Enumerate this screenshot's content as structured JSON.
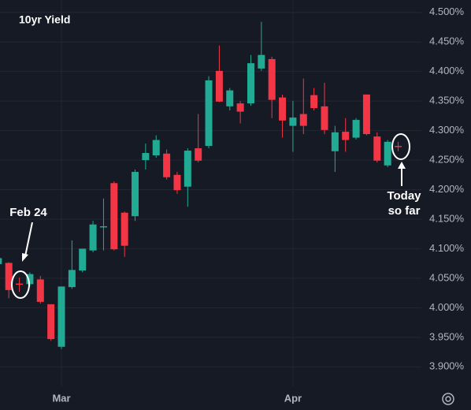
{
  "chart_data": {
    "type": "candlestick",
    "title": "10yr Yield",
    "annotations": [
      "Feb 24",
      "Today",
      "so far"
    ],
    "categories": [
      null,
      null,
      null,
      null,
      null,
      null,
      "Mar",
      null,
      null,
      null,
      null,
      null,
      null,
      null,
      null,
      null,
      null,
      null,
      null,
      null,
      null,
      null,
      null,
      null,
      null,
      null,
      null,
      null,
      "Apr",
      null,
      null,
      null,
      null,
      null,
      null,
      null,
      null,
      null,
      null
    ],
    "open": [
      4.074,
      4.076,
      4.041,
      4.04,
      4.048,
      4.006,
      3.934,
      4.035,
      4.063,
      4.097,
      4.137,
      4.211,
      4.161,
      4.155,
      4.25,
      4.258,
      4.261,
      4.225,
      4.205,
      4.27,
      4.274,
      4.401,
      4.341,
      4.346,
      4.346,
      4.405,
      4.421,
      4.356,
      4.308,
      4.328,
      4.36,
      4.341,
      4.265,
      4.298,
      4.288,
      4.361,
      4.29,
      4.241,
      4.274
    ],
    "high": [
      4.086,
      4.077,
      4.051,
      4.06,
      4.054,
      4.006,
      4.036,
      4.114,
      4.1,
      4.147,
      4.185,
      4.214,
      4.163,
      4.234,
      4.278,
      4.292,
      4.268,
      4.23,
      4.27,
      4.328,
      4.392,
      4.444,
      4.372,
      4.35,
      4.428,
      4.484,
      4.425,
      4.361,
      4.35,
      4.388,
      4.372,
      4.381,
      4.308,
      4.321,
      4.321,
      4.361,
      4.297,
      4.284,
      4.281
    ],
    "low": [
      4.072,
      4.016,
      4.027,
      4.036,
      4.007,
      3.944,
      3.93,
      4.032,
      4.06,
      4.094,
      4.097,
      4.097,
      4.086,
      4.147,
      4.234,
      4.254,
      4.217,
      4.193,
      4.171,
      4.246,
      4.27,
      4.348,
      4.334,
      4.312,
      4.342,
      4.401,
      4.321,
      4.288,
      4.264,
      4.294,
      4.334,
      4.294,
      4.23,
      4.264,
      4.285,
      4.292,
      4.246,
      4.238,
      4.265
    ],
    "close": [
      4.084,
      4.03,
      4.039,
      4.057,
      4.01,
      3.947,
      4.036,
      4.064,
      4.1,
      4.141,
      4.138,
      4.099,
      4.105,
      4.23,
      4.262,
      4.284,
      4.221,
      4.199,
      4.266,
      4.249,
      4.385,
      4.349,
      4.368,
      4.332,
      4.414,
      4.428,
      4.352,
      4.317,
      4.322,
      4.308,
      4.338,
      4.301,
      4.297,
      4.284,
      4.318,
      4.294,
      4.249,
      4.281,
      4.272
    ],
    "up_color": "#22ab94",
    "down_color": "#f23645",
    "ylim": [
      3.867,
      4.521
    ],
    "yticks": [
      {
        "value": 4.5,
        "label": "4.500%"
      },
      {
        "value": 4.45,
        "label": "4.450%"
      },
      {
        "value": 4.4,
        "label": "4.400%"
      },
      {
        "value": 4.35,
        "label": "4.350%"
      },
      {
        "value": 4.3,
        "label": "4.300%"
      },
      {
        "value": 4.25,
        "label": "4.250%"
      },
      {
        "value": 4.2,
        "label": "4.200%"
      },
      {
        "value": 4.15,
        "label": "4.150%"
      },
      {
        "value": 4.1,
        "label": "4.100%"
      },
      {
        "value": 4.05,
        "label": "4.050%"
      },
      {
        "value": 4.0,
        "label": "4.000%"
      },
      {
        "value": 3.95,
        "label": "3.950%"
      },
      {
        "value": 3.9,
        "label": "3.900%"
      }
    ],
    "grid": true
  }
}
